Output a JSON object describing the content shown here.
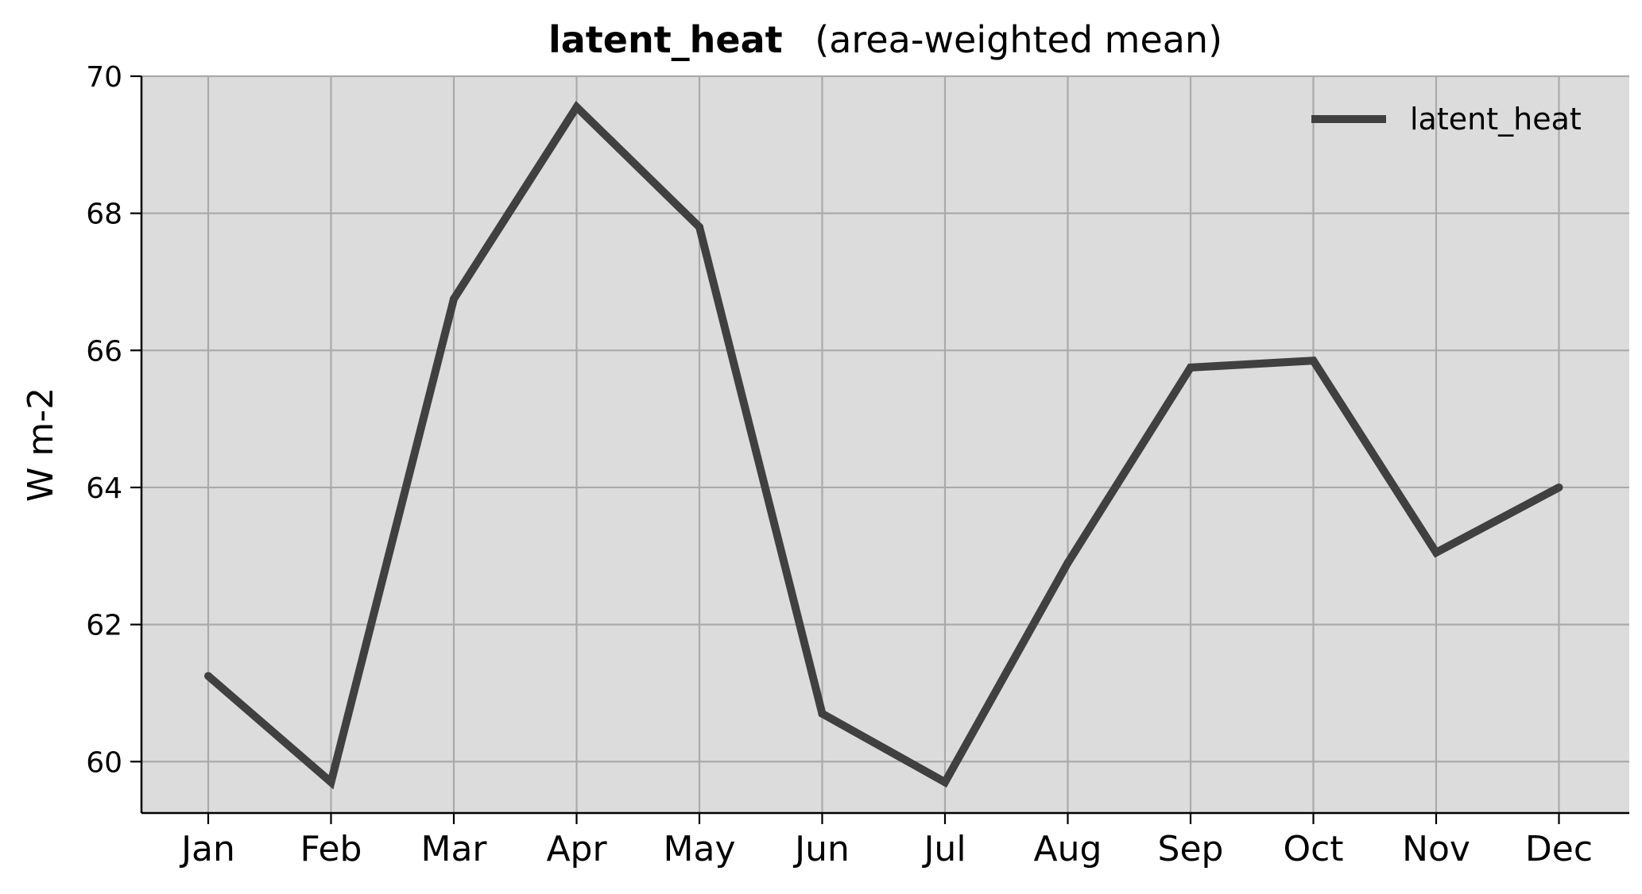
{
  "chart_data": {
    "type": "line",
    "title": "latent_heat",
    "subtitle": "(area-weighted mean)",
    "xlabel": "",
    "ylabel": "W m-2",
    "categories": [
      "Jan",
      "Feb",
      "Mar",
      "Apr",
      "May",
      "Jun",
      "Jul",
      "Aug",
      "Sep",
      "Oct",
      "Nov",
      "Dec"
    ],
    "series": [
      {
        "name": "latent_heat",
        "values": [
          61.25,
          59.7,
          66.75,
          69.55,
          67.8,
          60.7,
          59.7,
          62.9,
          65.75,
          65.85,
          63.05,
          64.0
        ],
        "color": "#404040"
      }
    ],
    "ylim": [
      59.25,
      70.0
    ],
    "yticks": [
      60,
      62,
      64,
      66,
      68,
      70
    ],
    "grid": true,
    "legend_position": "top-right",
    "background_color": "#dcdcdc",
    "grid_color": "#aaaaaa"
  }
}
